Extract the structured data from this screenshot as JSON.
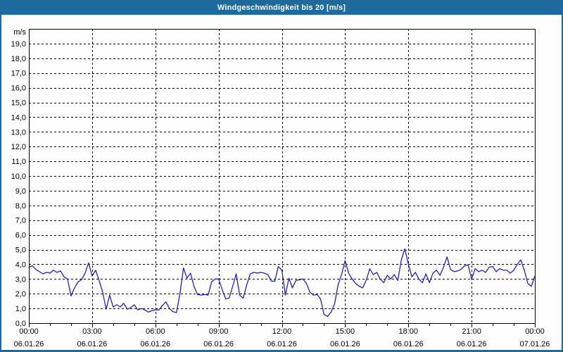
{
  "window": {
    "title": "Windgeschwindigkeit bis 20 [m/s]",
    "title_bg": "#1f6a9c",
    "title_color": "#ffffff",
    "border_color": "#1f6a9c",
    "panel_bg": "#fdfefd"
  },
  "chart_data": {
    "type": "line",
    "title": "Windgeschwindigkeit bis 20 [m/s]",
    "xlabel": "",
    "ylabel": "m/s",
    "ylim": [
      0,
      20
    ],
    "ytick_step": 1,
    "ytick_labels": [
      "0,0",
      "1,0",
      "2,0",
      "3,0",
      "4,0",
      "5,0",
      "6,0",
      "7,0",
      "8,0",
      "9,0",
      "10,0",
      "11,0",
      "12,0",
      "13,0",
      "14,0",
      "15,0",
      "16,0",
      "17,0",
      "18,0",
      "19,0"
    ],
    "grid": "dashed-black",
    "legend": "none",
    "line_color": "#2121be",
    "axis_color": "#000000",
    "x_start": "06.01.26 00:00",
    "x_end": "07.01.26 00:00",
    "x_total_hours": 24,
    "x_major_tick_hours": 3,
    "x_minor_tick_hours": 1,
    "xticks": [
      {
        "time": "00:00",
        "date": "06.01.26"
      },
      {
        "time": "03:00",
        "date": "06.01.26"
      },
      {
        "time": "06:00",
        "date": "06.01.26"
      },
      {
        "time": "09:00",
        "date": "06.01.26"
      },
      {
        "time": "12:00",
        "date": "06.01.26"
      },
      {
        "time": "15:00",
        "date": "06.01.26"
      },
      {
        "time": "18:00",
        "date": "06.01.26"
      },
      {
        "time": "21:00",
        "date": "06.01.26"
      },
      {
        "time": "00:00",
        "date": "07.01.26"
      }
    ],
    "sample_interval_minutes": 10,
    "unit": "m/s",
    "values": [
      3.8,
      3.9,
      3.65,
      3.5,
      3.35,
      3.45,
      3.4,
      3.6,
      3.45,
      3.55,
      3.15,
      3.0,
      1.85,
      2.4,
      2.8,
      2.95,
      3.4,
      4.1,
      3.2,
      3.6,
      2.9,
      2.1,
      0.95,
      1.9,
      1.1,
      1.25,
      1.1,
      1.35,
      0.95,
      1.05,
      1.25,
      0.9,
      1.0,
      0.9,
      0.75,
      0.85,
      0.9,
      0.9,
      1.2,
      1.45,
      1.0,
      0.78,
      0.72,
      2.0,
      3.75,
      3.05,
      3.4,
      2.5,
      1.95,
      1.9,
      1.95,
      1.9,
      2.8,
      3.0,
      3.0,
      2.3,
      1.65,
      1.7,
      2.5,
      3.35,
      1.9,
      1.7,
      2.6,
      3.35,
      3.45,
      3.4,
      3.45,
      3.4,
      3.3,
      2.85,
      2.85,
      3.85,
      3.6,
      1.9,
      3.05,
      2.4,
      2.9,
      2.95,
      3.0,
      2.7,
      2.1,
      1.9,
      1.95,
      1.65,
      0.6,
      0.45,
      0.75,
      1.3,
      2.6,
      3.3,
      4.25,
      3.4,
      3.0,
      2.7,
      2.5,
      2.4,
      2.9,
      3.7,
      3.3,
      3.45,
      3.0,
      2.75,
      3.25,
      3.0,
      3.3,
      2.9,
      4.3,
      5.05,
      4.0,
      3.15,
      3.45,
      3.0,
      2.75,
      3.35,
      2.75,
      3.4,
      3.6,
      3.25,
      3.8,
      4.5,
      3.65,
      3.5,
      3.55,
      3.65,
      3.9,
      3.95,
      3.0,
      3.7,
      3.5,
      3.6,
      3.45,
      3.8,
      3.85,
      3.5,
      3.7,
      3.6,
      3.6,
      3.4,
      3.6,
      4.0,
      4.3,
      3.6,
      2.7,
      2.5,
      3.2
    ]
  }
}
